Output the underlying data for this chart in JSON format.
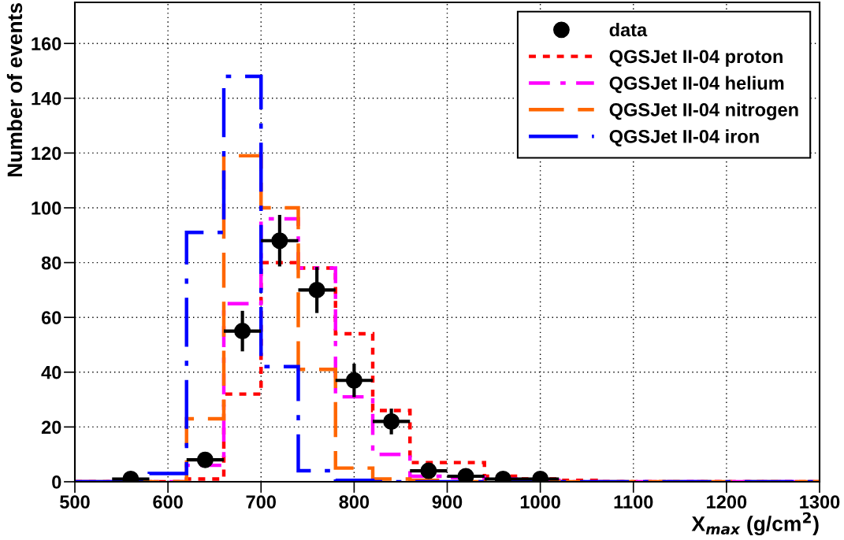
{
  "chart_data": {
    "type": "histogram",
    "xlabel": "X$_{max}$ (g/cm$^{2}$)",
    "ylabel": "Number of events",
    "bins": [
      500,
      540,
      580,
      620,
      660,
      700,
      740,
      780,
      820,
      860,
      900,
      940,
      980,
      1020,
      1060,
      1100,
      1140,
      1180,
      1220,
      1260,
      1300
    ],
    "series": [
      {
        "name": "data",
        "type": "scatter",
        "color": "#000000",
        "marker": "circle",
        "x": [
          560,
          640,
          680,
          720,
          760,
          800,
          840,
          880,
          920,
          960,
          1000
        ],
        "values": [
          1,
          8,
          55,
          88,
          70,
          37,
          22,
          4,
          2,
          1,
          1
        ],
        "errors": [
          1,
          2.8,
          7.4,
          9.4,
          8.4,
          6.1,
          4.7,
          2,
          1.4,
          1,
          1
        ],
        "xerrors": [
          20,
          20,
          20,
          20,
          20,
          20,
          20,
          20,
          20,
          20,
          20
        ]
      },
      {
        "name": "QGSJet II-04 proton",
        "color": "#ff0000",
        "line_style": "dotted",
        "values": [
          0,
          0,
          0,
          1,
          32,
          80,
          78,
          54,
          26,
          7,
          7,
          2,
          1,
          0.5,
          0,
          0,
          0,
          0,
          0,
          0
        ]
      },
      {
        "name": "QGSJet II-04 helium",
        "color": "#ff00ff",
        "line_style": "dashdot",
        "values": [
          0,
          0,
          0,
          6,
          65,
          96,
          78,
          31,
          10,
          2,
          1.5,
          1,
          0.5,
          0,
          0,
          0,
          0,
          0,
          0,
          0
        ]
      },
      {
        "name": "QGSJet II-04 nitrogen",
        "color": "#ff6600",
        "line_style": "dashed",
        "values": [
          0,
          0,
          0,
          23,
          119,
          100,
          41,
          5,
          1,
          0.5,
          0,
          0,
          0,
          0,
          0,
          0,
          0,
          0,
          0,
          0
        ]
      },
      {
        "name": "QGSJet II-04 iron",
        "color": "#0000ff",
        "line_style": "longdashdot",
        "values": [
          0,
          0,
          3,
          91,
          148,
          42,
          4,
          0.5,
          0,
          0,
          0,
          0,
          0,
          0,
          0,
          0,
          0,
          0,
          0,
          0
        ]
      }
    ],
    "xlim": [
      500,
      1300
    ],
    "xticks": [
      500,
      600,
      700,
      800,
      900,
      1000,
      1100,
      1200,
      1300
    ],
    "ylim": [
      0,
      175
    ],
    "yticks": [
      0,
      20,
      40,
      60,
      80,
      100,
      120,
      140,
      160
    ],
    "grid": true,
    "legend": "top right"
  }
}
